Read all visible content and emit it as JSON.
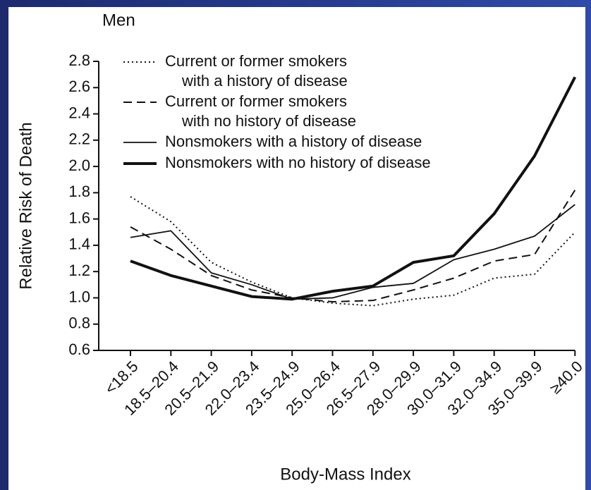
{
  "chart_data": {
    "type": "line",
    "title": "Men",
    "xlabel": "Body-Mass Index",
    "ylabel": "Relative Risk of Death",
    "categories": [
      "<18.5",
      "18.5–20.4",
      "20.5–21.9",
      "22.0–23.4",
      "23.5–24.9",
      "25.0–26.4",
      "26.5–27.9",
      "28.0–29.9",
      "30.0–31.9",
      "32.0–34.9",
      "35.0–39.9",
      "≥40.0"
    ],
    "ylim": [
      0.6,
      2.8
    ],
    "yticks": [
      0.6,
      0.8,
      {
        "value": 1,
        "label": "1.0"
      },
      1.2,
      1.4,
      1.6,
      1.8,
      {
        "value": 2,
        "label": "2.0"
      },
      2.2,
      2.4,
      2.6,
      2.8
    ],
    "series": [
      {
        "name": "Current or former smokers\nwith a history of disease",
        "color": "#111111",
        "style": "dotted",
        "width": 2,
        "values": [
          1.77,
          1.58,
          1.27,
          1.12,
          1.0,
          0.96,
          0.94,
          0.99,
          1.02,
          1.15,
          1.18,
          1.5
        ]
      },
      {
        "name": "Current or former smokers\nwith no history of disease",
        "color": "#111111",
        "style": "dashed",
        "width": 2,
        "values": [
          1.54,
          1.37,
          1.17,
          1.06,
          1.0,
          0.97,
          0.98,
          1.06,
          1.15,
          1.28,
          1.33,
          1.82
        ]
      },
      {
        "name": "Nonsmokers with a history of disease",
        "color": "#111111",
        "style": "solid",
        "width": 1.8,
        "values": [
          1.46,
          1.51,
          1.19,
          1.1,
          0.99,
          1.0,
          1.08,
          1.11,
          1.29,
          1.37,
          1.47,
          1.71
        ]
      },
      {
        "name": "Nonsmokers with no history of disease",
        "color": "#111111",
        "style": "solid",
        "width": 4,
        "values": [
          1.28,
          1.17,
          1.09,
          1.01,
          0.99,
          1.05,
          1.09,
          1.27,
          1.32,
          1.64,
          2.08,
          2.68
        ]
      }
    ]
  }
}
